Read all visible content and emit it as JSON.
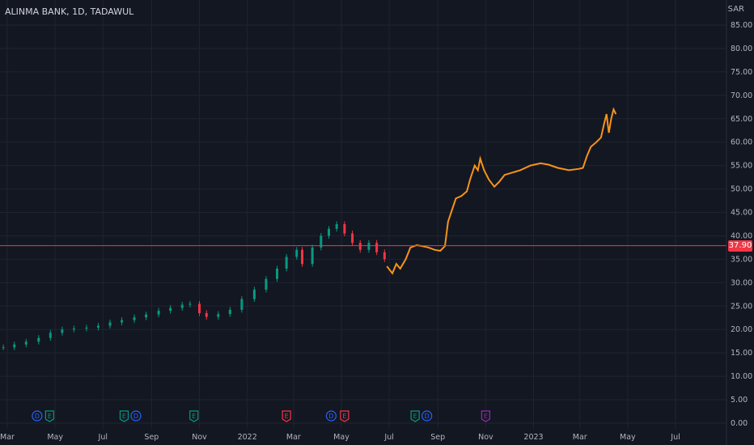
{
  "legend": {
    "symbol": "ALINMA BANK, 1D, TADAWUL"
  },
  "currency": "SAR",
  "last_price": "37.90",
  "colors": {
    "background": "#131722",
    "grid": "#1f2430",
    "up": "#089981",
    "down": "#f23645",
    "line": "#f7931a",
    "price_line": "#f23645",
    "event_dividend": "#2962ff",
    "event_earnings_green": "#089981",
    "event_earnings_red": "#f23645",
    "event_earnings_purple": "#9c27b0"
  },
  "chart_data": {
    "type": "candlestick+line",
    "y_axis": {
      "min": 0,
      "max": 85,
      "step": 5,
      "ticks": [
        "0.00",
        "5.00",
        "10.00",
        "15.00",
        "20.00",
        "25.00",
        "30.00",
        "35.00",
        "40.00",
        "45.00",
        "50.00",
        "55.00",
        "60.00",
        "65.00",
        "70.00",
        "75.00",
        "80.00",
        "85.00"
      ]
    },
    "x_axis": {
      "ticks": [
        {
          "label": "Mar",
          "date": "2021-03-01"
        },
        {
          "label": "May",
          "date": "2021-05-01"
        },
        {
          "label": "Jul",
          "date": "2021-07-01"
        },
        {
          "label": "Sep",
          "date": "2021-09-01"
        },
        {
          "label": "Nov",
          "date": "2021-11-01"
        },
        {
          "label": "2022",
          "date": "2022-01-01"
        },
        {
          "label": "Mar",
          "date": "2022-03-01"
        },
        {
          "label": "May",
          "date": "2022-05-01"
        },
        {
          "label": "Jul",
          "date": "2022-07-01"
        },
        {
          "label": "Sep",
          "date": "2022-09-01"
        },
        {
          "label": "Nov",
          "date": "2022-11-01"
        },
        {
          "label": "2023",
          "date": "2023-01-01"
        },
        {
          "label": "Mar",
          "date": "2023-03-01"
        },
        {
          "label": "May",
          "date": "2023-05-01"
        },
        {
          "label": "Jul",
          "date": "2023-07-01"
        }
      ]
    },
    "candles": [
      [
        "2021-02-24",
        16.2
      ],
      [
        "2021-03-10",
        16.8
      ],
      [
        "2021-03-25",
        17.4
      ],
      [
        "2021-04-10",
        18.2
      ],
      [
        "2021-04-25",
        19.3
      ],
      [
        "2021-05-10",
        20.0
      ],
      [
        "2021-05-25",
        20.2
      ],
      [
        "2021-06-10",
        20.4
      ],
      [
        "2021-06-25",
        20.8
      ],
      [
        "2021-07-10",
        21.5
      ],
      [
        "2021-07-25",
        22.0
      ],
      [
        "2021-08-10",
        22.6
      ],
      [
        "2021-08-25",
        23.2
      ],
      [
        "2021-09-10",
        24.0
      ],
      [
        "2021-09-25",
        24.6
      ],
      [
        "2021-10-10",
        25.3
      ],
      [
        "2021-10-20",
        25.5
      ],
      [
        "2021-11-01",
        23.5
      ],
      [
        "2021-11-10",
        22.7
      ],
      [
        "2021-11-25",
        23.3
      ],
      [
        "2021-12-10",
        24.2
      ],
      [
        "2021-12-25",
        26.5
      ],
      [
        "2022-01-10",
        28.5
      ],
      [
        "2022-01-25",
        30.8
      ],
      [
        "2022-02-08",
        33.0
      ],
      [
        "2022-02-20",
        35.5
      ],
      [
        "2022-03-05",
        37.0
      ],
      [
        "2022-03-12",
        34.0
      ],
      [
        "2022-03-25",
        37.5
      ],
      [
        "2022-04-05",
        40.0
      ],
      [
        "2022-04-15",
        41.5
      ],
      [
        "2022-04-25",
        42.5
      ],
      [
        "2022-05-05",
        40.5
      ],
      [
        "2022-05-15",
        38.5
      ],
      [
        "2022-05-25",
        37.0
      ],
      [
        "2022-06-05",
        38.5
      ],
      [
        "2022-06-15",
        36.5
      ],
      [
        "2022-06-25",
        35.0
      ]
    ],
    "line_series": [
      [
        "2022-06-28",
        33.5
      ],
      [
        "2022-07-05",
        32.0
      ],
      [
        "2022-07-10",
        34.0
      ],
      [
        "2022-07-15",
        33.0
      ],
      [
        "2022-07-22",
        35.0
      ],
      [
        "2022-07-28",
        37.5
      ],
      [
        "2022-08-05",
        38.0
      ],
      [
        "2022-08-12",
        37.8
      ],
      [
        "2022-08-20",
        37.5
      ],
      [
        "2022-08-28",
        37.0
      ],
      [
        "2022-09-04",
        36.8
      ],
      [
        "2022-09-10",
        37.8
      ],
      [
        "2022-09-14",
        43.0
      ],
      [
        "2022-09-18",
        45.0
      ],
      [
        "2022-09-24",
        48.0
      ],
      [
        "2022-10-01",
        48.5
      ],
      [
        "2022-10-08",
        49.5
      ],
      [
        "2022-10-12",
        52.0
      ],
      [
        "2022-10-18",
        55.0
      ],
      [
        "2022-10-22",
        54.0
      ],
      [
        "2022-10-25",
        56.5
      ],
      [
        "2022-10-30",
        54.0
      ],
      [
        "2022-11-05",
        52.0
      ],
      [
        "2022-11-12",
        50.5
      ],
      [
        "2022-11-18",
        51.5
      ],
      [
        "2022-11-25",
        53.0
      ],
      [
        "2022-12-05",
        53.5
      ],
      [
        "2022-12-15",
        54.0
      ],
      [
        "2022-12-28",
        55.0
      ],
      [
        "2023-01-10",
        55.5
      ],
      [
        "2023-01-20",
        55.2
      ],
      [
        "2023-02-01",
        54.5
      ],
      [
        "2023-02-15",
        54.0
      ],
      [
        "2023-02-28",
        54.3
      ],
      [
        "2023-03-05",
        54.5
      ],
      [
        "2023-03-10",
        57.0
      ],
      [
        "2023-03-15",
        59.0
      ],
      [
        "2023-03-22",
        60.0
      ],
      [
        "2023-03-28",
        61.0
      ],
      [
        "2023-04-01",
        64.0
      ],
      [
        "2023-04-04",
        66.0
      ],
      [
        "2023-04-07",
        62.0
      ],
      [
        "2023-04-10",
        65.0
      ],
      [
        "2023-04-13",
        67.0
      ],
      [
        "2023-04-16",
        66.0
      ]
    ],
    "events": [
      {
        "date": "2021-04-08",
        "label": "D",
        "kind": "dividend"
      },
      {
        "date": "2021-04-24",
        "label": "E",
        "kind": "earnings_green"
      },
      {
        "date": "2021-07-28",
        "label": "E",
        "kind": "earnings_green"
      },
      {
        "date": "2021-08-12",
        "label": "D",
        "kind": "dividend"
      },
      {
        "date": "2021-10-25",
        "label": "E",
        "kind": "earnings_green"
      },
      {
        "date": "2022-02-20",
        "label": "E",
        "kind": "earnings_red"
      },
      {
        "date": "2022-04-18",
        "label": "D",
        "kind": "dividend"
      },
      {
        "date": "2022-05-05",
        "label": "E",
        "kind": "earnings_red"
      },
      {
        "date": "2022-08-03",
        "label": "E",
        "kind": "earnings_green"
      },
      {
        "date": "2022-08-18",
        "label": "D",
        "kind": "dividend"
      },
      {
        "date": "2022-11-01",
        "label": "E",
        "kind": "earnings_purple"
      }
    ]
  }
}
